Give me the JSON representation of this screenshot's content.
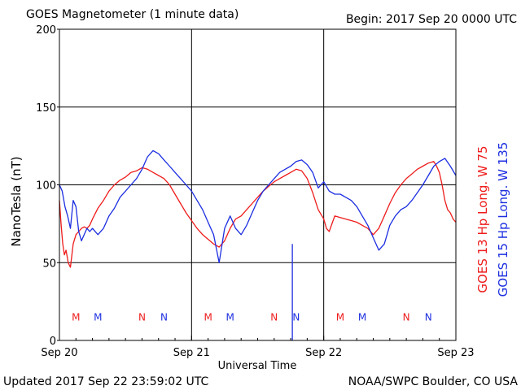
{
  "header": {
    "title": "GOES Magnetometer (1 minute data)",
    "begin": "Begin:  2017 Sep 20 0000 UTC"
  },
  "footer": {
    "updated": "Updated 2017 Sep 22 23:59:02 UTC",
    "credit": "NOAA/SWPC Boulder, CO USA"
  },
  "colors": {
    "goes13": "#ee1c1c",
    "goes15": "#1c2ee0",
    "axis": "#000000"
  },
  "chart_data": {
    "type": "line",
    "title": "GOES Magnetometer (1 minute data)",
    "xlabel": "Universal Time",
    "ylabel": "NanoTesla (nT)",
    "ylim": [
      0,
      200
    ],
    "xlim": [
      0,
      72
    ],
    "x_units": "hours since 2017 Sep 20 0000 UTC",
    "y_ticks": [
      0,
      50,
      100,
      150,
      200
    ],
    "x_ticks": [
      {
        "x": 0,
        "label": "Sep 20"
      },
      {
        "x": 24,
        "label": "Sep 21"
      },
      {
        "x": 48,
        "label": "Sep 22"
      },
      {
        "x": 72,
        "label": "Sep 23"
      }
    ],
    "grid": true,
    "series": [
      {
        "name": "GOES 13 Hp  Long. W 75",
        "color": "#ee1c1c",
        "x": [
          0,
          0.3,
          0.6,
          0.9,
          1.2,
          1.6,
          2.0,
          2.5,
          3.0,
          3.5,
          4.0,
          4.5,
          5.0,
          5.5,
          6.0,
          7.0,
          8.0,
          9.0,
          10.0,
          11.0,
          12.0,
          13.0,
          14.0,
          15.0,
          16.0,
          17.0,
          18.0,
          19.0,
          20.0,
          21.0,
          22.0,
          23.0,
          24.0,
          25.0,
          26.0,
          27.0,
          28.0,
          29.0,
          30.0,
          31.0,
          32.0,
          33.0,
          34.0,
          35.0,
          36.0,
          37.0,
          38.0,
          39.0,
          40.0,
          41.0,
          42.0,
          43.0,
          44.0,
          45.0,
          46.0,
          47.0,
          48.0,
          48.5,
          49.0,
          49.5,
          50.0,
          51.0,
          52.0,
          53.0,
          54.0,
          55.0,
          56.0,
          57.0,
          58.0,
          59.0,
          60.0,
          61.0,
          62.0,
          63.0,
          64.0,
          65.0,
          66.0,
          67.0,
          68.0,
          68.5,
          69.0,
          69.5,
          70.0,
          70.5,
          71.0,
          71.5,
          72.0
        ],
        "values": [
          90,
          75,
          62,
          55,
          58,
          50,
          47,
          62,
          68,
          70,
          72,
          73,
          72,
          74,
          78,
          85,
          90,
          96,
          100,
          103,
          105,
          108,
          109,
          111,
          110,
          108,
          106,
          104,
          100,
          94,
          88,
          82,
          77,
          72,
          68,
          65,
          62,
          60,
          64,
          72,
          78,
          80,
          84,
          88,
          92,
          96,
          99,
          102,
          104,
          106,
          108,
          110,
          109,
          104,
          95,
          84,
          78,
          72,
          70,
          75,
          80,
          79,
          78,
          77,
          76,
          74,
          72,
          68,
          72,
          80,
          88,
          95,
          100,
          104,
          107,
          110,
          112,
          114,
          115,
          112,
          108,
          100,
          90,
          84,
          82,
          78,
          76
        ]
      },
      {
        "name": "GOES 15 Hp  Long. W 135",
        "color": "#1c2ee0",
        "x": [
          0,
          0.5,
          1.0,
          1.5,
          2.0,
          2.5,
          3.0,
          3.5,
          4.0,
          4.5,
          5.0,
          5.5,
          6.0,
          7.0,
          8.0,
          9.0,
          10.0,
          11.0,
          12.0,
          13.0,
          14.0,
          15.0,
          16.0,
          17.0,
          18.0,
          19.0,
          20.0,
          21.0,
          22.0,
          23.0,
          24.0,
          25.0,
          26.0,
          27.0,
          28.0,
          29.0,
          30.0,
          31.0,
          32.0,
          33.0,
          34.0,
          35.0,
          36.0,
          37.0,
          38.0,
          39.0,
          40.0,
          41.0,
          42.0,
          43.0,
          44.0,
          45.0,
          46.0,
          47.0,
          48.0,
          49.0,
          50.0,
          51.0,
          52.0,
          53.0,
          54.0,
          55.0,
          56.0,
          57.0,
          58.0,
          59.0,
          60.0,
          61.0,
          62.0,
          63.0,
          64.0,
          65.0,
          66.0,
          67.0,
          68.0,
          69.0,
          70.0,
          71.0,
          72.0
        ],
        "values": [
          100,
          96,
          86,
          80,
          72,
          90,
          86,
          70,
          64,
          68,
          72,
          70,
          72,
          68,
          72,
          80,
          85,
          92,
          96,
          100,
          104,
          110,
          118,
          122,
          120,
          116,
          112,
          108,
          104,
          100,
          96,
          90,
          84,
          76,
          68,
          50,
          72,
          80,
          72,
          68,
          74,
          82,
          90,
          96,
          100,
          104,
          108,
          110,
          112,
          115,
          116,
          113,
          108,
          98,
          102,
          96,
          94,
          94,
          92,
          90,
          86,
          80,
          74,
          66,
          58,
          62,
          74,
          80,
          84,
          86,
          90,
          95,
          100,
          106,
          112,
          115,
          117,
          112,
          106
        ]
      }
    ],
    "spikes": [
      {
        "series": "GOES 15 Hp  Long. W 135",
        "x": 42.3,
        "values": [
          62,
          0
        ]
      }
    ],
    "markers": [
      {
        "x": 3.0,
        "label": "M",
        "color": "#ee1c1c"
      },
      {
        "x": 7.0,
        "label": "M",
        "color": "#1c2ee0"
      },
      {
        "x": 15.0,
        "label": "N",
        "color": "#ee1c1c"
      },
      {
        "x": 19.0,
        "label": "N",
        "color": "#1c2ee0"
      },
      {
        "x": 27.0,
        "label": "M",
        "color": "#ee1c1c"
      },
      {
        "x": 31.0,
        "label": "M",
        "color": "#1c2ee0"
      },
      {
        "x": 39.0,
        "label": "N",
        "color": "#ee1c1c"
      },
      {
        "x": 43.0,
        "label": "N",
        "color": "#1c2ee0"
      },
      {
        "x": 51.0,
        "label": "M",
        "color": "#ee1c1c"
      },
      {
        "x": 55.0,
        "label": "M",
        "color": "#1c2ee0"
      },
      {
        "x": 63.0,
        "label": "N",
        "color": "#ee1c1c"
      },
      {
        "x": 67.0,
        "label": "N",
        "color": "#1c2ee0"
      }
    ],
    "marker_y": 16,
    "vertical_lines": [
      24,
      48
    ],
    "legend_placement": "right, rotated vertical"
  }
}
